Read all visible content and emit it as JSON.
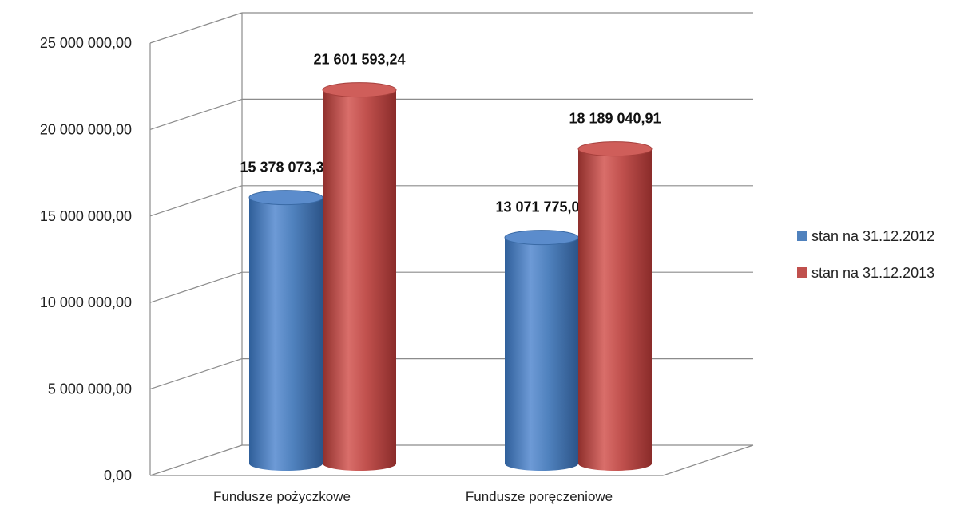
{
  "chart_data": {
    "type": "bar",
    "style": "3d-cylinder",
    "categories": [
      "Fundusze pożyczkowe",
      "Fundusze poręczeniowe"
    ],
    "series": [
      {
        "name": "stan na 31.12.2012",
        "color": "#4F81BD",
        "values": [
          15378073.32,
          13071775.02
        ],
        "labels": [
          "15 378 073,32",
          "13 071 775,02"
        ]
      },
      {
        "name": "stan na 31.12.2013",
        "color": "#C0504D",
        "values": [
          21601593.24,
          18189040.91
        ],
        "labels": [
          "21 601 593,24",
          "18 189 040,91"
        ]
      }
    ],
    "y_ticks": [
      0,
      5000000,
      10000000,
      15000000,
      20000000,
      25000000
    ],
    "y_tick_labels": [
      "0,00",
      "5 000 000,00",
      "10 000 000,00",
      "15 000 000,00",
      "20 000 000,00",
      "25 000 000,00"
    ],
    "ylim": [
      0,
      25000000
    ],
    "grid": true,
    "legend": "right"
  }
}
